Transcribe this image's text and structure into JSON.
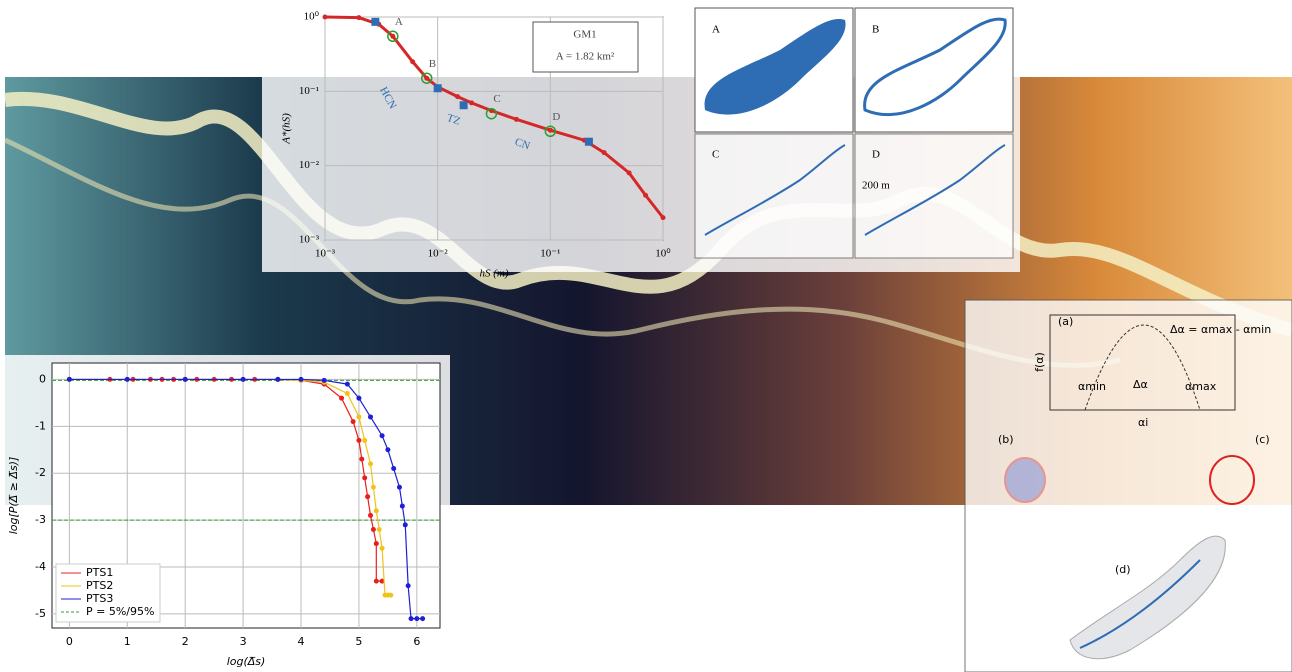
{
  "chart_data": [
    {
      "type": "line",
      "xlog": true,
      "ylog": true,
      "grid": true,
      "x_label": "hS (m)",
      "y_label": "A*(hS)",
      "xlim": [
        0.001,
        1
      ],
      "ylim": [
        0.001,
        1
      ],
      "xticks": [
        {
          "value": 0.001,
          "label": "10⁻³"
        },
        {
          "value": 0.01,
          "label": "10⁻²"
        },
        {
          "value": 0.1,
          "label": "10⁻¹"
        },
        {
          "value": 1,
          "label": "10⁰"
        }
      ],
      "yticks": [
        {
          "value": 0.001,
          "label": "10⁻³"
        },
        {
          "value": 0.01,
          "label": "10⁻²"
        },
        {
          "value": 0.1,
          "label": "10⁻¹"
        },
        {
          "value": 1,
          "label": "10⁰"
        }
      ],
      "series": [
        {
          "color": "#d62728",
          "marker": "dot",
          "x": [
            0.001,
            0.002,
            0.003,
            0.004,
            0.006,
            0.008,
            0.01,
            0.015,
            0.02,
            0.03,
            0.05,
            0.1,
            0.2,
            0.3,
            0.5,
            0.7,
            1
          ],
          "values": [
            1,
            0.98,
            0.8,
            0.55,
            0.25,
            0.15,
            0.115,
            0.085,
            0.07,
            0.055,
            0.042,
            0.03,
            0.022,
            0.015,
            0.008,
            0.004,
            0.002
          ]
        },
        {
          "color": "#2e6db4",
          "marker": "square",
          "line": false,
          "x": [
            0.0028,
            0.01,
            0.017,
            0.22
          ],
          "values": [
            0.86,
            0.11,
            0.065,
            0.021
          ]
        },
        {
          "color": "#2ca02c",
          "marker": "circle",
          "line": false,
          "x": [
            0.004,
            0.008,
            0.03,
            0.1
          ],
          "values": [
            0.55,
            0.15,
            0.05,
            0.029
          ],
          "point_labels": [
            "A",
            "B",
            "C",
            "D"
          ]
        }
      ],
      "annotations": [
        "HCN",
        "TZ",
        "CN"
      ],
      "inset_text": [
        "GM1",
        "A = 1.82 km²"
      ]
    },
    {
      "type": "line",
      "grid": true,
      "legend": "lower left",
      "x_label": "log(Δ̅s)",
      "y_label": "log[P(Δ̅ ≥ Δ̅s)]",
      "xlim": [
        -0.3,
        6.4
      ],
      "ylim": [
        -5.3,
        0.35
      ],
      "xticks": [
        0,
        1,
        2,
        3,
        4,
        5,
        6
      ],
      "yticks": [
        -5,
        -4,
        -3,
        -2,
        -1,
        0
      ],
      "series": [
        {
          "name": "PTS1",
          "color": "#e8201c",
          "marker": "dot",
          "x": [
            0,
            0.7,
            1.1,
            1.4,
            1.6,
            1.8,
            2,
            2.2,
            2.5,
            2.8,
            3.2,
            3.6,
            4,
            4.4,
            4.7,
            4.9,
            5.0,
            5.05,
            5.1,
            5.15,
            5.2,
            5.25,
            5.3,
            5.3,
            5.4
          ],
          "values": [
            0,
            0,
            0,
            0,
            0,
            0,
            0,
            0,
            0,
            0,
            0,
            0,
            -0.02,
            -0.1,
            -0.4,
            -0.9,
            -1.3,
            -1.7,
            -2.1,
            -2.5,
            -2.9,
            -3.2,
            -3.5,
            -4.3,
            -4.3
          ]
        },
        {
          "name": "PTS2",
          "color": "#f2c21b",
          "marker": "dot",
          "x": [
            0,
            1,
            2,
            3,
            3.6,
            4,
            4.4,
            4.8,
            5.0,
            5.1,
            5.2,
            5.25,
            5.3,
            5.35,
            5.4,
            5.45,
            5.5,
            5.55
          ],
          "values": [
            0,
            0,
            0,
            0,
            0,
            -0.02,
            -0.06,
            -0.3,
            -0.8,
            -1.3,
            -1.8,
            -2.3,
            -2.8,
            -3.2,
            -3.6,
            -4.6,
            -4.6,
            -4.6
          ]
        },
        {
          "name": "PTS3",
          "color": "#1f1fd6",
          "marker": "dot",
          "x": [
            0,
            1,
            2,
            3,
            3.6,
            4,
            4.4,
            4.8,
            5.0,
            5.2,
            5.4,
            5.5,
            5.6,
            5.7,
            5.75,
            5.8,
            5.85,
            5.9,
            6.0,
            6.1
          ],
          "values": [
            0,
            0,
            0,
            0,
            0,
            0,
            -0.02,
            -0.1,
            -0.4,
            -0.8,
            -1.2,
            -1.5,
            -1.9,
            -2.3,
            -2.7,
            -3.1,
            -4.4,
            -5.1,
            -5.1,
            -5.1
          ]
        }
      ],
      "hlines": {
        "name": "P = 5%/95%",
        "color": "#2ca02c",
        "values": [
          -0.02,
          -3
        ]
      }
    }
  ],
  "map_panels": {
    "labels": [
      "A",
      "B",
      "C",
      "D"
    ],
    "scale": "200 m"
  },
  "diagram": {
    "labels": [
      "(a)",
      "(b)",
      "(c)",
      "(d)"
    ],
    "y_label": "f(α)",
    "formula": "Δα = αmax - αmin",
    "alpha_min": "αmin",
    "alpha_max": "αmax",
    "delta": "Δα",
    "alpha_i": "αi"
  }
}
